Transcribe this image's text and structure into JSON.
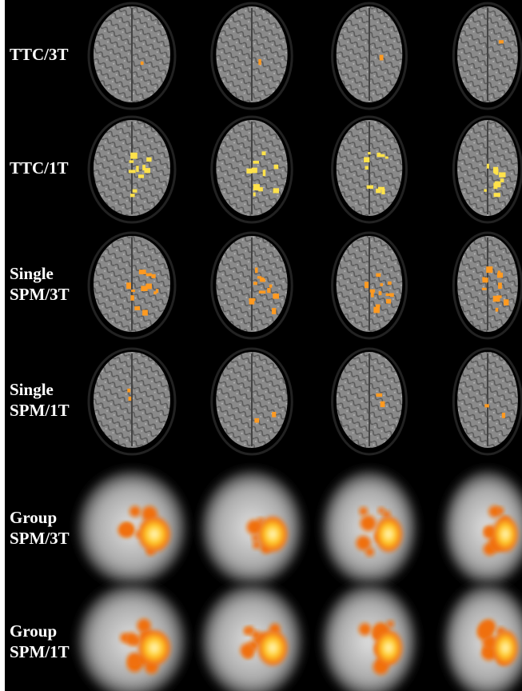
{
  "rows": [
    {
      "lines": [
        "TTC/3T"
      ]
    },
    {
      "lines": [
        "TTC/1T"
      ]
    },
    {
      "lines": [
        "Single",
        "SPM/3T"
      ]
    },
    {
      "lines": [
        "Single",
        "SPM/1T"
      ]
    },
    {
      "lines": [
        "Group",
        "SPM/3T"
      ]
    },
    {
      "lines": [
        "Group",
        "SPM/1T"
      ]
    }
  ]
}
